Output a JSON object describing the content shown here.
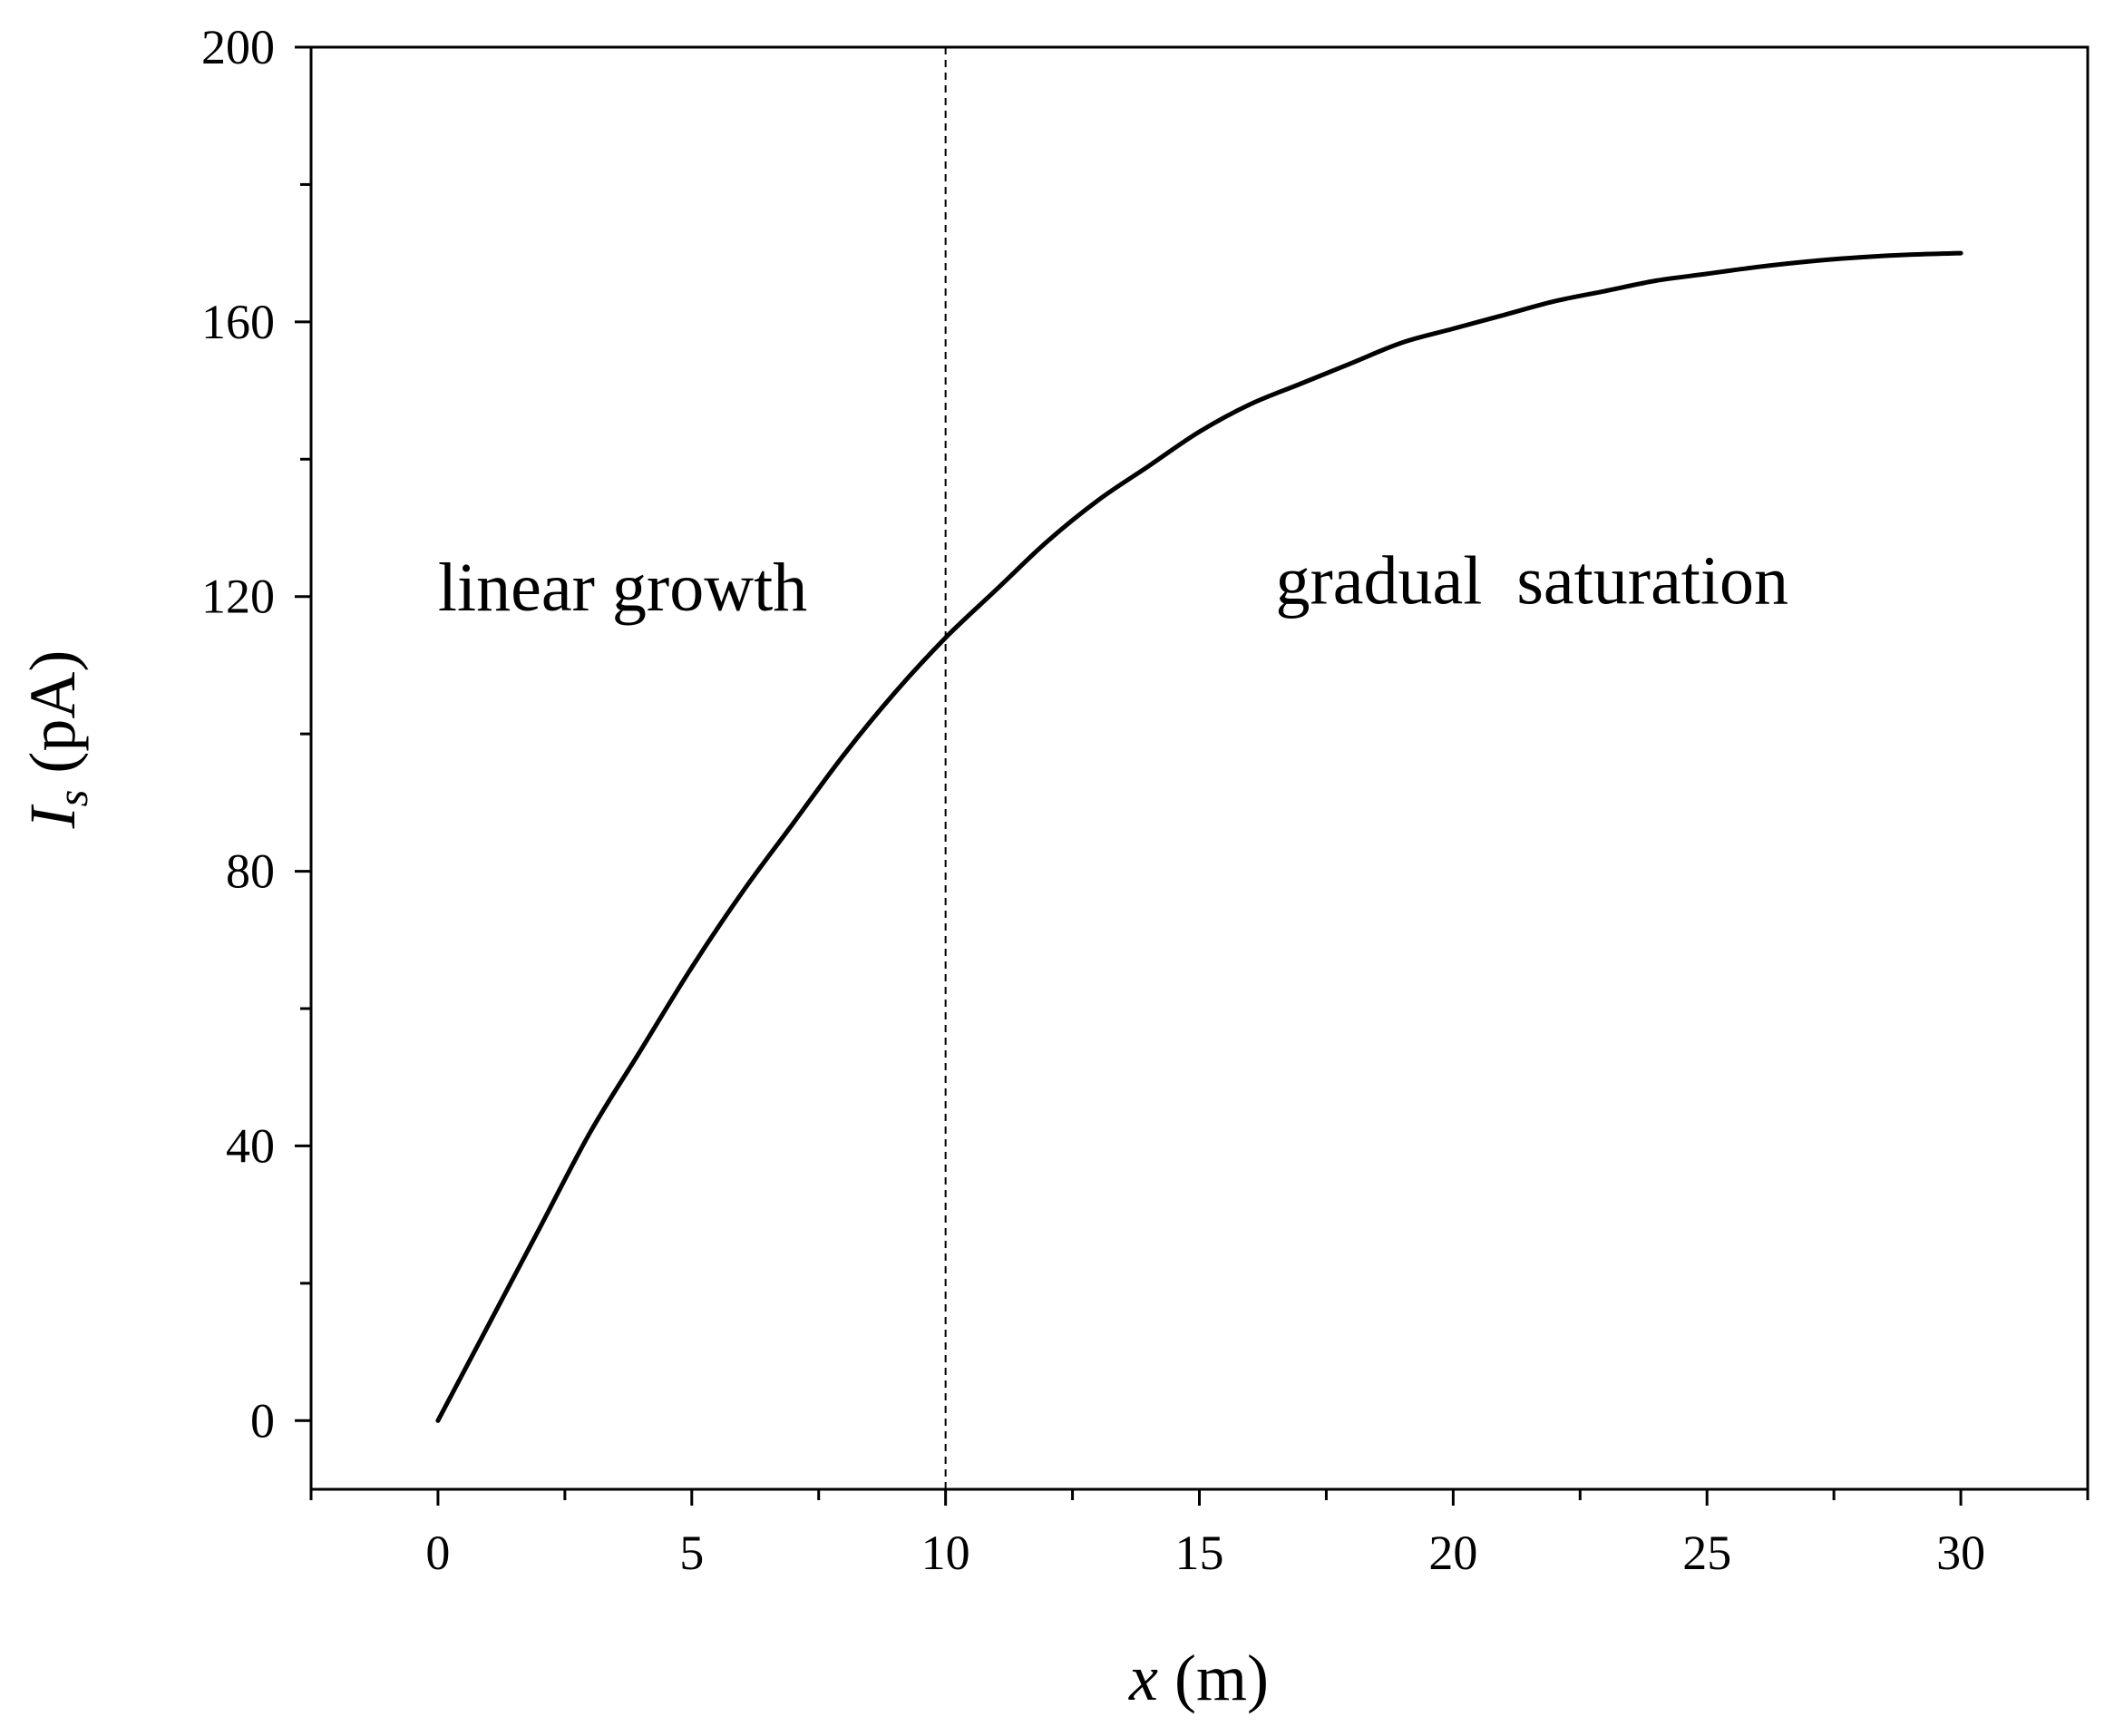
{
  "chart_data": {
    "type": "line",
    "title": "",
    "xlabel": {
      "symbol": "x",
      "unit": "(m)"
    },
    "ylabel": {
      "symbol": "I",
      "subscript": "s",
      "unit": "(pA)"
    },
    "xlim": [
      -2.5,
      32.5
    ],
    "ylim": [
      -10,
      200
    ],
    "x_ticks": [
      0,
      5,
      10,
      15,
      20,
      25,
      30
    ],
    "x_tick_labels": [
      "0",
      "5",
      "10",
      "15",
      "20",
      "25",
      "30"
    ],
    "y_ticks": [
      0,
      40,
      80,
      120,
      160,
      200
    ],
    "y_tick_labels": [
      "0",
      "40",
      "80",
      "120",
      "160",
      "200"
    ],
    "grid": false,
    "series": [
      {
        "color": "#000000",
        "x": [
          0,
          1,
          2,
          3,
          4,
          5,
          6,
          7,
          8,
          9,
          10,
          11,
          12,
          13,
          14,
          15,
          16,
          17,
          18,
          19,
          20,
          21,
          22,
          23,
          24,
          25,
          26,
          27,
          28,
          29,
          30
        ],
        "y": [
          0,
          14,
          28,
          42,
          54,
          66,
          77,
          87,
          97,
          106,
          114,
          121,
          128,
          134,
          139,
          144,
          148,
          151,
          154,
          157,
          159,
          161,
          163,
          164.5,
          166,
          167,
          168,
          168.8,
          169.4,
          169.8,
          170
        ]
      }
    ],
    "reference_lines": [
      {
        "axis": "x",
        "value": 10,
        "style": "dashed"
      }
    ],
    "annotations": [
      {
        "text": "linear growth",
        "x": 0,
        "y": 118
      },
      {
        "text": "gradual  saturation",
        "x": 16.5,
        "y": 119
      }
    ]
  }
}
